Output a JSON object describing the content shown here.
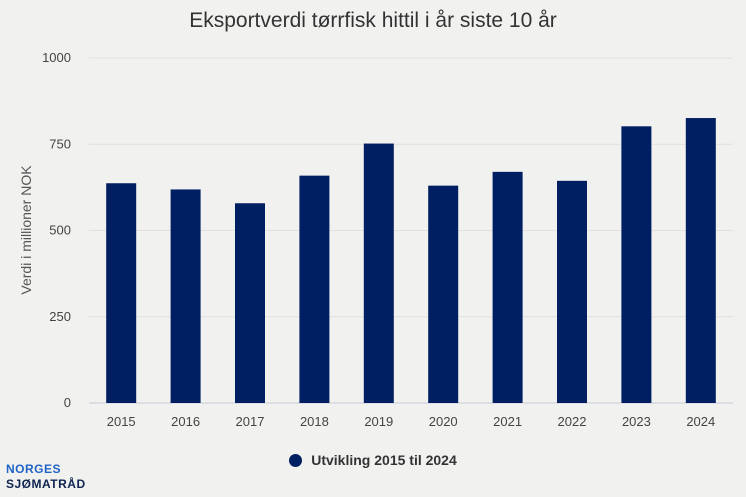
{
  "colors": {
    "bar": "#001f63",
    "grid": "#e0e0e0",
    "axis": "#c8cad6",
    "logo_top": "#1f63c7",
    "logo_bottom": "#0f2350"
  },
  "chart_data": {
    "type": "bar",
    "title": "Eksportverdi tørrfisk hittil i år siste 10 år",
    "xlabel": "",
    "ylabel": "Verdi i millioner NOK",
    "categories": [
      "2015",
      "2016",
      "2017",
      "2018",
      "2019",
      "2020",
      "2021",
      "2022",
      "2023",
      "2024"
    ],
    "series": [
      {
        "name": "Utvikling 2015 til 2024",
        "values": [
          637,
          619,
          579,
          659,
          752,
          630,
          670,
          644,
          802,
          826
        ]
      }
    ],
    "ylim": [
      0,
      1000
    ],
    "yticks": [
      0,
      250,
      500,
      750,
      1000
    ],
    "grid": true,
    "legend": "bottom-center"
  },
  "logo": {
    "line1": "NORGES",
    "line2": "SJØMATRÅD"
  }
}
